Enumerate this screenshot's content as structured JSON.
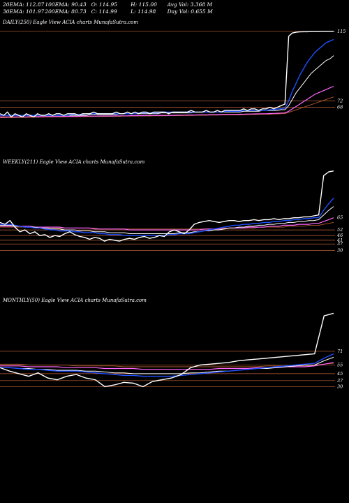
{
  "stats": {
    "row1": [
      "20EMA: 112.87",
      "100EMA: 90.43",
      "O: 114.95",
      "H: 115.00",
      "Avg Vol: 3.368 M"
    ],
    "row2": [
      "30EMA: 101.97",
      "200EMA: 80.73",
      "C: 114.99",
      "L: 114.98",
      "Day Vol: 0.655 M"
    ]
  },
  "chart_data": [
    {
      "type": "line",
      "title": "DAILY(250) Eagle   View  ACIA charts MunafaSutra.com",
      "price_labels": [
        "115",
        "72",
        "68"
      ],
      "yrange": [
        60,
        118
      ],
      "colors": {
        "price": "#ffffff",
        "ema20": "#1e4fff",
        "ema30": "#ffffff",
        "ema100": "#ff66ff",
        "ema200": "#b05a2a",
        "level": "#c0603a"
      },
      "series": [
        {
          "key": "price",
          "values": [
            64,
            63,
            65,
            62,
            64,
            63,
            62,
            64,
            63,
            62,
            64,
            63,
            63,
            64,
            63,
            64,
            64,
            63,
            64,
            64,
            64,
            63,
            64,
            64,
            64,
            65,
            64,
            64,
            64,
            64,
            64,
            65,
            64,
            64,
            65,
            64,
            65,
            64,
            65,
            65,
            64,
            65,
            65,
            65,
            65,
            64,
            65,
            65,
            65,
            65,
            65,
            66,
            65,
            65,
            65,
            66,
            65,
            65,
            66,
            65,
            66,
            66,
            66,
            66,
            66,
            67,
            66,
            67,
            67,
            66,
            67,
            67,
            68,
            67,
            68,
            69,
            70,
            112,
            114,
            114.5,
            114.7,
            114.8,
            114.8,
            114.9,
            114.9,
            114.9,
            115,
            115,
            115,
            115
          ]
        },
        {
          "key": "ema20",
          "values": [
            63,
            63,
            63,
            63,
            63,
            63,
            63,
            63,
            63,
            63,
            63,
            63,
            63,
            63,
            63,
            63,
            63,
            63,
            63,
            63.5,
            63.5,
            63.5,
            63.5,
            64,
            64,
            64,
            64,
            64,
            64,
            64,
            64,
            64,
            64,
            64,
            64,
            64,
            64,
            64.5,
            64.5,
            64.5,
            64.5,
            64.5,
            64.5,
            65,
            65,
            65,
            65,
            65,
            65,
            65,
            65,
            65,
            65,
            65,
            65,
            65,
            65,
            65,
            65,
            65,
            65.5,
            65.5,
            65.5,
            65.5,
            65.5,
            66,
            66,
            66,
            66,
            66,
            66,
            66,
            66.5,
            66.5,
            67,
            67,
            67.5,
            72,
            78,
            83,
            88,
            92,
            96,
            99,
            102,
            104,
            106,
            108,
            109,
            110
          ]
        },
        {
          "key": "ema30",
          "values": [
            63,
            63,
            63,
            63,
            63,
            63,
            63,
            63,
            63,
            63,
            63,
            63,
            63,
            63,
            63,
            63,
            63,
            63,
            63,
            63,
            63,
            63,
            63,
            63,
            63.5,
            63.5,
            63.5,
            63.5,
            63.5,
            63.5,
            63.5,
            63.5,
            64,
            64,
            64,
            64,
            64,
            64,
            64,
            64,
            64,
            64,
            64,
            64.5,
            64.5,
            64.5,
            64.5,
            64.5,
            64.5,
            64.5,
            64.5,
            64.5,
            65,
            65,
            65,
            65,
            65,
            65,
            65,
            65,
            65,
            65,
            65,
            65,
            65,
            65.5,
            65.5,
            65.5,
            65.5,
            65.5,
            66,
            66,
            66,
            66,
            66,
            66.5,
            66.5,
            69,
            73,
            77,
            80,
            83,
            86,
            89,
            91,
            93,
            95,
            97,
            98,
            100
          ]
        },
        {
          "key": "ema100",
          "values": [
            62,
            62,
            62,
            62,
            62,
            62,
            62,
            62,
            62.2,
            62.2,
            62.2,
            62.2,
            62.2,
            62.3,
            62.3,
            62.3,
            62.3,
            62.3,
            62.4,
            62.4,
            62.4,
            62.4,
            62.5,
            62.5,
            62.5,
            62.5,
            62.5,
            62.6,
            62.6,
            62.6,
            62.6,
            62.7,
            62.7,
            62.7,
            62.7,
            62.8,
            62.8,
            62.8,
            62.8,
            62.9,
            62.9,
            62.9,
            63,
            63,
            63,
            63,
            63,
            63.1,
            63.1,
            63.1,
            63.2,
            63.2,
            63.2,
            63.3,
            63.3,
            63.3,
            63.4,
            63.4,
            63.4,
            63.5,
            63.5,
            63.6,
            63.6,
            63.6,
            63.7,
            63.7,
            63.8,
            63.8,
            63.9,
            63.9,
            64,
            64,
            64.1,
            64.2,
            64.3,
            64.4,
            64.5,
            65.5,
            67,
            68.5,
            70,
            71.5,
            73,
            74.5,
            76,
            77,
            78,
            79,
            80,
            81
          ]
        },
        {
          "key": "ema200",
          "values": [
            61.5,
            61.5,
            61.6,
            61.6,
            61.6,
            61.7,
            61.7,
            61.7,
            61.8,
            61.8,
            61.8,
            61.9,
            61.9,
            61.9,
            62,
            62,
            62,
            62,
            62.1,
            62.1,
            62.1,
            62.2,
            62.2,
            62.2,
            62.2,
            62.3,
            62.3,
            62.3,
            62.3,
            62.4,
            62.4,
            62.4,
            62.4,
            62.5,
            62.5,
            62.5,
            62.5,
            62.6,
            62.6,
            62.6,
            62.6,
            62.7,
            62.7,
            62.7,
            62.7,
            62.8,
            62.8,
            62.8,
            62.8,
            62.9,
            62.9,
            62.9,
            63,
            63,
            63,
            63,
            63.1,
            63.1,
            63.1,
            63.2,
            63.2,
            63.2,
            63.3,
            63.3,
            63.3,
            63.4,
            63.4,
            63.5,
            63.5,
            63.6,
            63.6,
            63.7,
            63.7,
            63.8,
            63.9,
            64,
            64.1,
            64.8,
            65.6,
            66.4,
            67.2,
            68,
            68.8,
            69.6,
            70.4,
            71.2,
            72,
            72.8,
            73.6,
            74.4
          ]
        }
      ],
      "levels": [
        115,
        72,
        68
      ]
    },
    {
      "type": "line",
      "title": "WEEKLY(211) Eagle   View  ACIA charts MunafaSutra.com",
      "price_labels": [
        "65",
        "52",
        "46",
        "41",
        "37",
        "30"
      ],
      "yrange": [
        20,
        120
      ],
      "colors": {
        "price": "#ffffff",
        "ema20": "#1e4fff",
        "ema30": "#ffffff",
        "ema100": "#ff66ff",
        "ema200": "#b05a2a",
        "level": "#c0603a"
      },
      "series": [
        {
          "key": "price",
          "values": [
            60,
            58,
            62,
            55,
            50,
            52,
            48,
            50,
            46,
            47,
            44,
            46,
            45,
            48,
            50,
            47,
            45,
            44,
            42,
            44,
            43,
            40,
            42,
            41,
            40,
            42,
            43,
            42,
            44,
            45,
            43,
            44,
            46,
            45,
            50,
            52,
            50,
            48,
            52,
            58,
            60,
            61,
            62,
            61,
            60,
            61,
            62,
            62,
            61,
            62,
            62,
            63,
            62,
            63,
            63,
            64,
            63,
            64,
            64,
            65,
            65,
            66,
            66,
            67,
            68,
            110,
            114,
            115
          ]
        },
        {
          "key": "ema20",
          "values": [
            58,
            58,
            58,
            57,
            56,
            55,
            55,
            54,
            54,
            53,
            52,
            52,
            51,
            51,
            51,
            50,
            50,
            49,
            49,
            49,
            48,
            48,
            47,
            47,
            47,
            46,
            46,
            46,
            46,
            46,
            46,
            46,
            46,
            46,
            47,
            47,
            48,
            48,
            48,
            49,
            50,
            51,
            52,
            53,
            54,
            55,
            56,
            57,
            57,
            58,
            58,
            59,
            59,
            60,
            60,
            61,
            61,
            62,
            62,
            63,
            63,
            64,
            64,
            65,
            65,
            73,
            80,
            86
          ]
        },
        {
          "key": "ema30",
          "values": [
            57,
            57,
            57,
            56,
            56,
            55,
            55,
            55,
            54,
            54,
            53,
            53,
            53,
            52,
            52,
            52,
            51,
            51,
            51,
            50,
            50,
            50,
            49,
            49,
            49,
            49,
            48,
            48,
            48,
            48,
            48,
            48,
            48,
            48,
            48,
            48,
            49,
            49,
            49,
            50,
            50,
            51,
            51,
            52,
            52,
            53,
            54,
            54,
            55,
            55,
            56,
            56,
            57,
            57,
            58,
            58,
            59,
            59,
            60,
            60,
            61,
            61,
            62,
            62,
            63,
            68,
            73,
            77
          ]
        },
        {
          "key": "ema100",
          "values": [
            56,
            56,
            56,
            56,
            56,
            56,
            56,
            55,
            55,
            55,
            55,
            55,
            55,
            54,
            54,
            54,
            54,
            54,
            54,
            53,
            53,
            53,
            53,
            53,
            53,
            53,
            52,
            52,
            52,
            52,
            52,
            52,
            52,
            52,
            52,
            52,
            52,
            52,
            52,
            52,
            52,
            53,
            53,
            53,
            53,
            53,
            54,
            54,
            54,
            54,
            55,
            55,
            55,
            55,
            56,
            56,
            56,
            57,
            57,
            57,
            58,
            58,
            58,
            59,
            59,
            61,
            63,
            65
          ]
        },
        {
          "key": "ema200",
          "values": [
            55,
            55,
            55,
            55,
            55,
            55,
            55,
            55,
            55,
            55,
            54,
            54,
            54,
            54,
            54,
            54,
            54,
            54,
            54,
            54,
            53,
            53,
            53,
            53,
            53,
            53,
            53,
            53,
            53,
            53,
            53,
            53,
            53,
            53,
            53,
            53,
            53,
            53,
            53,
            53,
            53,
            53,
            53,
            53,
            53,
            54,
            54,
            54,
            54,
            54,
            54,
            54,
            55,
            55,
            55,
            55,
            55,
            55,
            56,
            56,
            56,
            56,
            57,
            57,
            57,
            58,
            59,
            60
          ]
        }
      ],
      "levels": [
        52,
        46,
        41,
        37,
        30
      ]
    },
    {
      "type": "line",
      "title": "MONTHLY(50) Eagle   View  ACIA charts MunafaSutra.com",
      "price_labels": [
        "71",
        "55",
        "45",
        "37",
        "30"
      ],
      "yrange": [
        15,
        125
      ],
      "colors": {
        "price": "#ffffff",
        "ema20": "#1e4fff",
        "ema30": "#ffffff",
        "ema100": "#ff66ff",
        "ema200": "#b05a2a",
        "level": "#c0603a"
      },
      "series": [
        {
          "key": "price",
          "values": [
            52,
            48,
            45,
            42,
            46,
            40,
            38,
            42,
            44,
            40,
            38,
            30,
            32,
            35,
            34,
            30,
            36,
            38,
            40,
            44,
            52,
            55,
            56,
            57,
            58,
            60,
            61,
            62,
            63,
            64,
            65,
            66,
            67,
            68,
            112,
            115
          ]
        },
        {
          "key": "ema20",
          "values": [
            52,
            52,
            51,
            50,
            50,
            49,
            48,
            48,
            48,
            47,
            46,
            45,
            44,
            43,
            43,
            42,
            42,
            42,
            42,
            43,
            44,
            45,
            46,
            47,
            48,
            49,
            50,
            51,
            52,
            53,
            54,
            55,
            56,
            57,
            63,
            68
          ]
        },
        {
          "key": "ema30",
          "values": [
            52,
            52,
            51,
            51,
            50,
            50,
            49,
            49,
            49,
            48,
            48,
            47,
            46,
            46,
            45,
            45,
            45,
            45,
            45,
            45,
            46,
            46,
            47,
            48,
            48,
            49,
            50,
            51,
            51,
            52,
            53,
            54,
            55,
            55,
            60,
            64
          ]
        },
        {
          "key": "ema100",
          "values": [
            54,
            54,
            54,
            53,
            53,
            53,
            53,
            52,
            52,
            52,
            52,
            51,
            51,
            51,
            51,
            50,
            50,
            50,
            50,
            50,
            50,
            50,
            50,
            51,
            51,
            51,
            51,
            52,
            52,
            52,
            53,
            53,
            53,
            54,
            56,
            58
          ]
        },
        {
          "key": "ema200",
          "values": [
            56,
            56,
            56,
            55,
            55,
            55,
            55,
            55,
            54,
            54,
            54,
            54,
            54,
            53,
            53,
            53,
            53,
            53,
            53,
            53,
            53,
            53,
            53,
            53,
            53,
            53,
            53,
            53,
            54,
            54,
            54,
            54,
            54,
            55,
            56,
            57
          ]
        }
      ],
      "levels": [
        71,
        55,
        45,
        37,
        30
      ]
    }
  ]
}
